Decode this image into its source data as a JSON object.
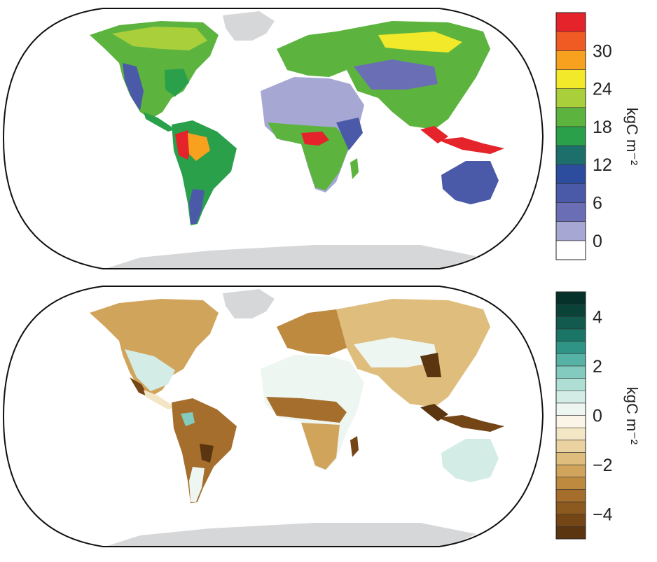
{
  "panels": [
    {
      "id": "top",
      "colorbar": {
        "unit": "kgC m⁻²",
        "ticks": [
          {
            "value": 0,
            "label": "0"
          },
          {
            "value": 6,
            "label": "6"
          },
          {
            "value": 12,
            "label": "12"
          },
          {
            "value": 18,
            "label": "18"
          },
          {
            "value": 24,
            "label": "24"
          },
          {
            "value": 30,
            "label": "30"
          }
        ],
        "bands": [
          {
            "from": -3,
            "to": 0,
            "color": "#ffffff"
          },
          {
            "from": 0,
            "to": 3,
            "color": "#a6a8d3"
          },
          {
            "from": 3,
            "to": 6,
            "color": "#6a6fb5"
          },
          {
            "from": 6,
            "to": 9,
            "color": "#4b5aa8"
          },
          {
            "from": 9,
            "to": 12,
            "color": "#2c4c9e"
          },
          {
            "from": 12,
            "to": 15,
            "color": "#1d6f6c"
          },
          {
            "from": 15,
            "to": 18,
            "color": "#2aa04a"
          },
          {
            "from": 18,
            "to": 21,
            "color": "#5cb43f"
          },
          {
            "from": 21,
            "to": 24,
            "color": "#a9cf3b"
          },
          {
            "from": 24,
            "to": 27,
            "color": "#f1e92a"
          },
          {
            "from": 27,
            "to": 30,
            "color": "#f8a11e"
          },
          {
            "from": 30,
            "to": 33,
            "color": "#f05a23"
          },
          {
            "from": 33,
            "to": 36,
            "color": "#e5232a"
          }
        ],
        "range": [
          -3,
          36
        ]
      }
    },
    {
      "id": "bottom",
      "colorbar": {
        "unit": "kgC m⁻²",
        "ticks": [
          {
            "value": -4,
            "label": "−4"
          },
          {
            "value": -2,
            "label": "−2"
          },
          {
            "value": 0,
            "label": "0"
          },
          {
            "value": 2,
            "label": "2"
          },
          {
            "value": 4,
            "label": "4"
          }
        ],
        "bands": [
          {
            "from": -5.0,
            "to": -4.5,
            "color": "#5a3510"
          },
          {
            "from": -4.5,
            "to": -4.0,
            "color": "#744515"
          },
          {
            "from": -4.0,
            "to": -3.5,
            "color": "#8c5a1f"
          },
          {
            "from": -3.5,
            "to": -3.0,
            "color": "#a56e2c"
          },
          {
            "from": -3.0,
            "to": -2.5,
            "color": "#bd8a40"
          },
          {
            "from": -2.5,
            "to": -2.0,
            "color": "#d1a45c"
          },
          {
            "from": -2.0,
            "to": -1.5,
            "color": "#dfbd7d"
          },
          {
            "from": -1.5,
            "to": -1.0,
            "color": "#ead3a0"
          },
          {
            "from": -1.0,
            "to": -0.5,
            "color": "#f3e6c5"
          },
          {
            "from": -0.5,
            "to": 0.0,
            "color": "#faf5e6"
          },
          {
            "from": 0.0,
            "to": 0.5,
            "color": "#eef6f2"
          },
          {
            "from": 0.5,
            "to": 1.0,
            "color": "#d3ede6"
          },
          {
            "from": 1.0,
            "to": 1.5,
            "color": "#afded4"
          },
          {
            "from": 1.5,
            "to": 2.0,
            "color": "#82cbbe"
          },
          {
            "from": 2.0,
            "to": 2.5,
            "color": "#56b2a4"
          },
          {
            "from": 2.5,
            "to": 3.0,
            "color": "#2f9485"
          },
          {
            "from": 3.0,
            "to": 3.5,
            "color": "#1b7566"
          },
          {
            "from": 3.5,
            "to": 4.0,
            "color": "#115a4d"
          },
          {
            "from": 4.0,
            "to": 4.5,
            "color": "#0b4237"
          },
          {
            "from": 4.5,
            "to": 5.0,
            "color": "#06302a"
          }
        ],
        "range": [
          -5,
          5
        ]
      }
    }
  ],
  "colors": {
    "ocean": "#ffffff",
    "ice": "#d6d7d9",
    "coastline": "#111111"
  }
}
